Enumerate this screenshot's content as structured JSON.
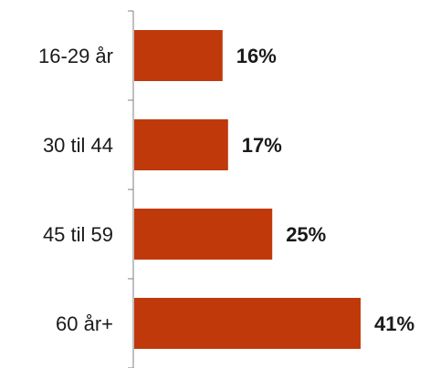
{
  "chart_data": {
    "type": "bar",
    "orientation": "horizontal",
    "categories": [
      "16-29 år",
      "30 til 44",
      "45 til 59",
      "60 år+"
    ],
    "values": [
      16,
      17,
      25,
      41
    ],
    "value_labels": [
      "16%",
      "17%",
      "25%",
      "41%"
    ],
    "unit": "%",
    "xlim": [
      0,
      41
    ],
    "grid": false,
    "legend": "none",
    "bar_color": "#c0390b",
    "axis_color": "#808080",
    "text_color": "#1a1a1a"
  }
}
